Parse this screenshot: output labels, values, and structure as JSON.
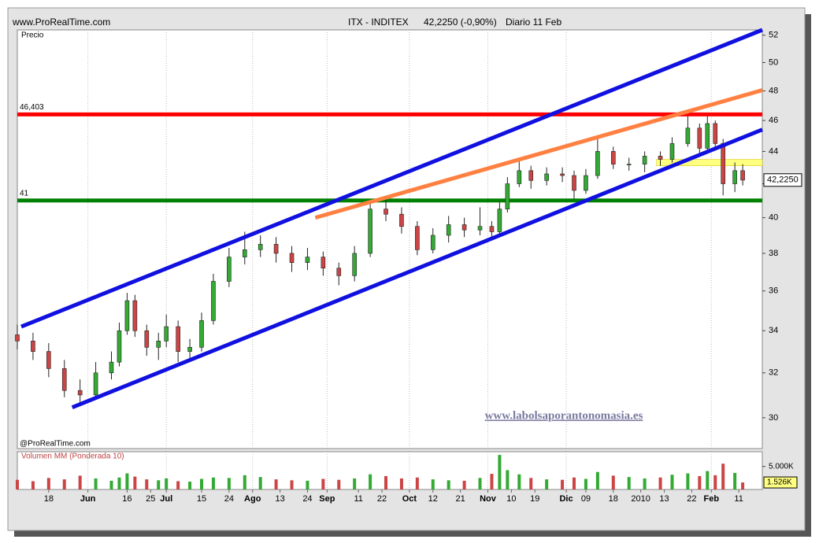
{
  "chart_data": {
    "type": "candlestick",
    "source": "www.ProRealTime.com",
    "title": "ITX - INDITEX",
    "price_text": "42,2250 (-0,90%)",
    "period": "Diario  11 Feb",
    "ylabel": "Precio",
    "copyright": "@ProRealTime.com",
    "watermark": "www.labolsaporantonomasia.es",
    "log_scale": true,
    "up_color": "#33aa33",
    "down_color": "#cc4444",
    "xlim": [
      0,
      190
    ],
    "xticks": [
      {
        "value": 8,
        "label": "18"
      },
      {
        "value": 18,
        "label": "Jun"
      },
      {
        "value": 28,
        "label": "16"
      },
      {
        "value": 34,
        "label": "25"
      },
      {
        "value": 38,
        "label": "Jul"
      },
      {
        "value": 47,
        "label": "15"
      },
      {
        "value": 54,
        "label": "24"
      },
      {
        "value": 60,
        "label": "Ago"
      },
      {
        "value": 67,
        "label": "13"
      },
      {
        "value": 74,
        "label": "24"
      },
      {
        "value": 79,
        "label": "Sep"
      },
      {
        "value": 87,
        "label": "11"
      },
      {
        "value": 93,
        "label": "22"
      },
      {
        "value": 100,
        "label": "Oct"
      },
      {
        "value": 106,
        "label": "12"
      },
      {
        "value": 113,
        "label": "21"
      },
      {
        "value": 120,
        "label": "Nov"
      },
      {
        "value": 126,
        "label": "10"
      },
      {
        "value": 132,
        "label": "19"
      },
      {
        "value": 140,
        "label": "Dic"
      },
      {
        "value": 145,
        "label": "09"
      },
      {
        "value": 152,
        "label": "18"
      },
      {
        "value": 159,
        "label": "2010"
      },
      {
        "value": 165,
        "label": "13"
      },
      {
        "value": 172,
        "label": "22"
      },
      {
        "value": 177,
        "label": "Feb"
      },
      {
        "value": 184,
        "label": "11"
      }
    ],
    "ylim": [
      28.7,
      52.4
    ],
    "yticks": [
      30,
      32,
      34,
      36,
      38,
      40,
      42,
      44,
      46,
      48,
      50,
      52
    ],
    "last_price": {
      "value": 42.225,
      "label": "42,2250"
    },
    "candles": [
      {
        "x": 0,
        "o": 33.8,
        "h": 34.3,
        "l": 33.1,
        "c": 33.5
      },
      {
        "x": 4,
        "o": 33.5,
        "h": 33.9,
        "l": 32.6,
        "c": 33.0
      },
      {
        "x": 8,
        "o": 33.0,
        "h": 33.4,
        "l": 31.8,
        "c": 32.2
      },
      {
        "x": 12,
        "o": 32.2,
        "h": 32.6,
        "l": 30.9,
        "c": 31.2
      },
      {
        "x": 16,
        "o": 31.2,
        "h": 31.7,
        "l": 30.6,
        "c": 31.0
      },
      {
        "x": 20,
        "o": 31.0,
        "h": 32.5,
        "l": 30.8,
        "c": 32.0
      },
      {
        "x": 24,
        "o": 32.0,
        "h": 33.0,
        "l": 31.7,
        "c": 32.5
      },
      {
        "x": 26,
        "o": 32.5,
        "h": 34.4,
        "l": 32.3,
        "c": 34.0
      },
      {
        "x": 28,
        "o": 34.0,
        "h": 35.9,
        "l": 33.8,
        "c": 35.5
      },
      {
        "x": 30,
        "o": 35.5,
        "h": 35.8,
        "l": 33.7,
        "c": 34.0
      },
      {
        "x": 33,
        "o": 34.0,
        "h": 34.3,
        "l": 32.8,
        "c": 33.2
      },
      {
        "x": 36,
        "o": 33.2,
        "h": 33.9,
        "l": 32.6,
        "c": 33.5
      },
      {
        "x": 38,
        "o": 33.5,
        "h": 34.8,
        "l": 33.2,
        "c": 34.2
      },
      {
        "x": 41,
        "o": 34.2,
        "h": 34.5,
        "l": 32.5,
        "c": 33.0
      },
      {
        "x": 44,
        "o": 33.0,
        "h": 33.6,
        "l": 32.6,
        "c": 33.2
      },
      {
        "x": 47,
        "o": 33.2,
        "h": 34.9,
        "l": 33.0,
        "c": 34.5
      },
      {
        "x": 50,
        "o": 34.5,
        "h": 36.9,
        "l": 34.3,
        "c": 36.5
      },
      {
        "x": 54,
        "o": 36.5,
        "h": 38.3,
        "l": 36.2,
        "c": 37.8
      },
      {
        "x": 58,
        "o": 37.8,
        "h": 39.2,
        "l": 37.4,
        "c": 38.2
      },
      {
        "x": 62,
        "o": 38.2,
        "h": 39.0,
        "l": 37.8,
        "c": 38.5
      },
      {
        "x": 66,
        "o": 38.5,
        "h": 38.9,
        "l": 37.5,
        "c": 38.0
      },
      {
        "x": 70,
        "o": 38.0,
        "h": 38.4,
        "l": 37.0,
        "c": 37.5
      },
      {
        "x": 74,
        "o": 37.5,
        "h": 38.3,
        "l": 37.1,
        "c": 37.8
      },
      {
        "x": 78,
        "o": 37.8,
        "h": 38.1,
        "l": 36.8,
        "c": 37.2
      },
      {
        "x": 82,
        "o": 37.2,
        "h": 37.5,
        "l": 36.3,
        "c": 36.8
      },
      {
        "x": 86,
        "o": 36.8,
        "h": 38.4,
        "l": 36.5,
        "c": 38.0
      },
      {
        "x": 90,
        "o": 38.0,
        "h": 41.0,
        "l": 37.8,
        "c": 40.5
      },
      {
        "x": 94,
        "o": 40.5,
        "h": 41.1,
        "l": 39.8,
        "c": 40.2
      },
      {
        "x": 98,
        "o": 40.2,
        "h": 40.6,
        "l": 39.1,
        "c": 39.5
      },
      {
        "x": 102,
        "o": 39.5,
        "h": 39.8,
        "l": 37.9,
        "c": 38.2
      },
      {
        "x": 106,
        "o": 38.2,
        "h": 39.4,
        "l": 38.0,
        "c": 39.0
      },
      {
        "x": 110,
        "o": 39.0,
        "h": 40.1,
        "l": 38.6,
        "c": 39.6
      },
      {
        "x": 114,
        "o": 39.6,
        "h": 40.0,
        "l": 38.9,
        "c": 39.3
      },
      {
        "x": 118,
        "o": 39.3,
        "h": 40.6,
        "l": 39.0,
        "c": 39.5
      },
      {
        "x": 121,
        "o": 39.5,
        "h": 39.8,
        "l": 38.9,
        "c": 39.2
      },
      {
        "x": 123,
        "o": 39.2,
        "h": 40.9,
        "l": 39.0,
        "c": 40.5
      },
      {
        "x": 125,
        "o": 40.5,
        "h": 42.4,
        "l": 40.3,
        "c": 42.0
      },
      {
        "x": 128,
        "o": 42.0,
        "h": 43.5,
        "l": 41.8,
        "c": 42.8
      },
      {
        "x": 131,
        "o": 42.8,
        "h": 43.1,
        "l": 41.7,
        "c": 42.2
      },
      {
        "x": 135,
        "o": 42.2,
        "h": 43.0,
        "l": 41.9,
        "c": 42.6
      },
      {
        "x": 139,
        "o": 42.6,
        "h": 43.0,
        "l": 42.1,
        "c": 42.5
      },
      {
        "x": 142,
        "o": 42.5,
        "h": 42.8,
        "l": 41.1,
        "c": 41.6
      },
      {
        "x": 145,
        "o": 41.6,
        "h": 42.9,
        "l": 41.4,
        "c": 42.5
      },
      {
        "x": 148,
        "o": 42.5,
        "h": 45.0,
        "l": 42.3,
        "c": 44.0
      },
      {
        "x": 152,
        "o": 44.0,
        "h": 44.3,
        "l": 42.9,
        "c": 43.2
      },
      {
        "x": 156,
        "o": 43.2,
        "h": 43.6,
        "l": 42.8,
        "c": 43.2
      },
      {
        "x": 160,
        "o": 43.2,
        "h": 44.0,
        "l": 42.7,
        "c": 43.7
      },
      {
        "x": 164,
        "o": 43.7,
        "h": 44.0,
        "l": 43.1,
        "c": 43.5
      },
      {
        "x": 167,
        "o": 43.5,
        "h": 44.9,
        "l": 43.3,
        "c": 44.5
      },
      {
        "x": 171,
        "o": 44.5,
        "h": 46.3,
        "l": 44.3,
        "c": 45.5
      },
      {
        "x": 174,
        "o": 45.5,
        "h": 45.8,
        "l": 43.9,
        "c": 44.2
      },
      {
        "x": 176,
        "o": 44.2,
        "h": 46.3,
        "l": 44.0,
        "c": 45.8
      },
      {
        "x": 178,
        "o": 45.8,
        "h": 46.0,
        "l": 44.2,
        "c": 44.5
      },
      {
        "x": 180,
        "o": 44.5,
        "h": 44.8,
        "l": 41.3,
        "c": 42.0
      },
      {
        "x": 183,
        "o": 42.0,
        "h": 43.3,
        "l": 41.5,
        "c": 42.8
      },
      {
        "x": 185,
        "o": 42.8,
        "h": 43.2,
        "l": 41.9,
        "c": 42.22
      }
    ],
    "trend_lines": [
      {
        "color": "#1010e0",
        "x": [
          1,
          190
        ],
        "y": [
          34.2,
          52.4
        ]
      },
      {
        "color": "#1010e0",
        "x": [
          14,
          190
        ],
        "y": [
          30.45,
          45.4
        ]
      },
      {
        "color": "#ff8040",
        "x": [
          76,
          190
        ],
        "y": [
          40.0,
          48.05
        ]
      }
    ],
    "levels": [
      {
        "value": 46.403,
        "label": "46,403",
        "color": "#ff0000"
      },
      {
        "value": 41,
        "color": "#008000"
      }
    ],
    "band": {
      "x": [
        163,
        190
      ],
      "y": [
        43.1,
        43.5
      ],
      "color": "#ffff80"
    },
    "volume": {
      "title": "Volumen MM (Ponderada 10)",
      "ylim": [
        0,
        8200
      ],
      "yticks": [
        {
          "value": 5000,
          "label": "5.000K"
        }
      ],
      "last_label": "1.526K",
      "values": [
        2100,
        1800,
        2500,
        2200,
        3000,
        2400,
        1900,
        2600,
        3500,
        2800,
        2200,
        2000,
        2400,
        1800,
        1700,
        2300,
        2600,
        2500,
        3100,
        2700,
        2200,
        2000,
        1900,
        2300,
        2100,
        2400,
        3300,
        2900,
        2400,
        2600,
        2200,
        2000,
        1900,
        2500,
        3400,
        7500,
        4200,
        3300,
        2500,
        2200,
        2100,
        2600,
        2300,
        3800,
        3000,
        2700,
        2400,
        2600,
        3200,
        3500,
        2900,
        4000,
        3100,
        5600,
        3600,
        1526
      ]
    }
  }
}
